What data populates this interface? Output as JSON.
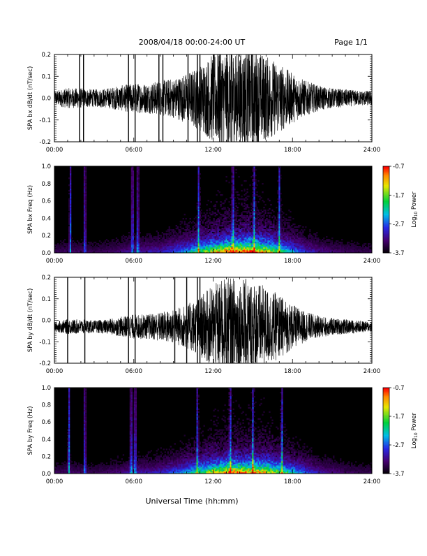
{
  "header": {
    "title": "2008/04/18  00:00-24:00 UT",
    "page": "Page 1/1"
  },
  "footer": {
    "xlabel": "Universal Time (hh:mm)"
  },
  "chart_data": [
    {
      "type": "line",
      "ylabel": "SPA bx dB/dt (nT/sec)",
      "ylim": [
        -0.2,
        0.2
      ],
      "yticks": [
        "0.2",
        "0.1",
        "0.0",
        "-0.1",
        "-0.2"
      ],
      "xticks": [
        "00:00",
        "06:00",
        "12:00",
        "18:00",
        "24:00"
      ],
      "x_range_hours": [
        0,
        24
      ],
      "series_color": "#000000",
      "envelope": {
        "hours": [
          0,
          1,
          2,
          3,
          4,
          5,
          6,
          7,
          8,
          9,
          10,
          11,
          12,
          13,
          14,
          15,
          16,
          17,
          18,
          19,
          20,
          21,
          22,
          23,
          24
        ],
        "amplitude": [
          0.03,
          0.04,
          0.04,
          0.035,
          0.04,
          0.05,
          0.06,
          0.06,
          0.07,
          0.08,
          0.1,
          0.13,
          0.18,
          0.2,
          0.2,
          0.2,
          0.17,
          0.14,
          0.1,
          0.07,
          0.05,
          0.04,
          0.035,
          0.03,
          0.03
        ]
      },
      "spikes_hours": [
        1.9,
        2.2,
        5.6,
        6.1,
        7.9,
        8.2,
        10.1,
        10.8,
        11.0,
        12.5,
        13.4
      ]
    },
    {
      "type": "heatmap",
      "ylabel": "SPA bx Freq (Hz)",
      "ylim": [
        0.0,
        1.0
      ],
      "yticks": [
        "1.0",
        "0.8",
        "0.6",
        "0.4",
        "0.2",
        "0.0"
      ],
      "xticks": [
        "00:00",
        "06:00",
        "12:00",
        "18:00",
        "24:00"
      ],
      "colorbar": {
        "label": "Log10 Power",
        "label_main": "Log",
        "label_sub": "10",
        "label_tail": " Power",
        "ticks": [
          "-0.7",
          "-1.7",
          "-2.7",
          "-3.7"
        ],
        "range": [
          -3.7,
          -0.7
        ]
      },
      "activity": {
        "hours": [
          0,
          1,
          2,
          3,
          4,
          5,
          6,
          7,
          8,
          9,
          10,
          11,
          12,
          13,
          14,
          15,
          16,
          17,
          18,
          19,
          20,
          21,
          22,
          23,
          24
        ],
        "level": [
          0.1,
          0.12,
          0.12,
          0.1,
          0.12,
          0.15,
          0.2,
          0.2,
          0.22,
          0.3,
          0.4,
          0.55,
          0.7,
          0.85,
          0.9,
          0.85,
          0.75,
          0.55,
          0.4,
          0.25,
          0.18,
          0.14,
          0.12,
          0.1,
          0.1
        ]
      },
      "streak_hours": [
        1.2,
        2.3,
        5.9,
        6.3,
        10.9,
        13.5,
        15.1,
        17.0
      ]
    },
    {
      "type": "line",
      "ylabel": "SPA by dB/dt (nT/sec)",
      "ylim": [
        -0.2,
        0.2
      ],
      "yticks": [
        "0.2",
        "0.1",
        "0.0",
        "-0.1",
        "-0.2"
      ],
      "xticks": [
        "00:00",
        "06:00",
        "12:00",
        "18:00",
        "24:00"
      ],
      "x_range_hours": [
        0,
        24
      ],
      "series_color": "#000000",
      "envelope": {
        "hours": [
          0,
          1,
          2,
          3,
          4,
          5,
          6,
          7,
          8,
          9,
          10,
          11,
          12,
          13,
          14,
          15,
          16,
          17,
          18,
          19,
          20,
          21,
          22,
          23,
          24
        ],
        "amplitude": [
          0.02,
          0.03,
          0.03,
          0.025,
          0.03,
          0.04,
          0.05,
          0.05,
          0.06,
          0.07,
          0.09,
          0.12,
          0.17,
          0.2,
          0.2,
          0.19,
          0.16,
          0.13,
          0.09,
          0.06,
          0.045,
          0.035,
          0.03,
          0.025,
          0.02
        ]
      },
      "offset": -0.03,
      "spikes_hours": [
        1.0,
        2.3,
        5.6,
        6.1,
        9.1,
        10.0,
        10.8,
        11.0
      ]
    },
    {
      "type": "heatmap",
      "ylabel": "SPA by Freq (Hz)",
      "ylim": [
        0.0,
        1.0
      ],
      "yticks": [
        "1.0",
        "0.8",
        "0.6",
        "0.4",
        "0.2",
        "0.0"
      ],
      "xticks": [
        "00:00",
        "06:00",
        "12:00",
        "18:00",
        "24:00"
      ],
      "colorbar": {
        "label": "Log10 Power",
        "label_main": "Log",
        "label_sub": "10",
        "label_tail": " Power",
        "ticks": [
          "-0.7",
          "-1.7",
          "-2.7",
          "-3.7"
        ],
        "range": [
          -3.7,
          -0.7
        ]
      },
      "activity": {
        "hours": [
          0,
          1,
          2,
          3,
          4,
          5,
          6,
          7,
          8,
          9,
          10,
          11,
          12,
          13,
          14,
          15,
          16,
          17,
          18,
          19,
          20,
          21,
          22,
          23,
          24
        ],
        "level": [
          0.1,
          0.12,
          0.12,
          0.1,
          0.12,
          0.15,
          0.2,
          0.2,
          0.22,
          0.3,
          0.4,
          0.55,
          0.7,
          0.8,
          0.85,
          0.8,
          0.75,
          0.6,
          0.45,
          0.3,
          0.2,
          0.16,
          0.12,
          0.1,
          0.1
        ]
      },
      "streak_hours": [
        1.1,
        2.3,
        5.8,
        6.1,
        10.8,
        13.3,
        15.0,
        17.2
      ]
    }
  ]
}
